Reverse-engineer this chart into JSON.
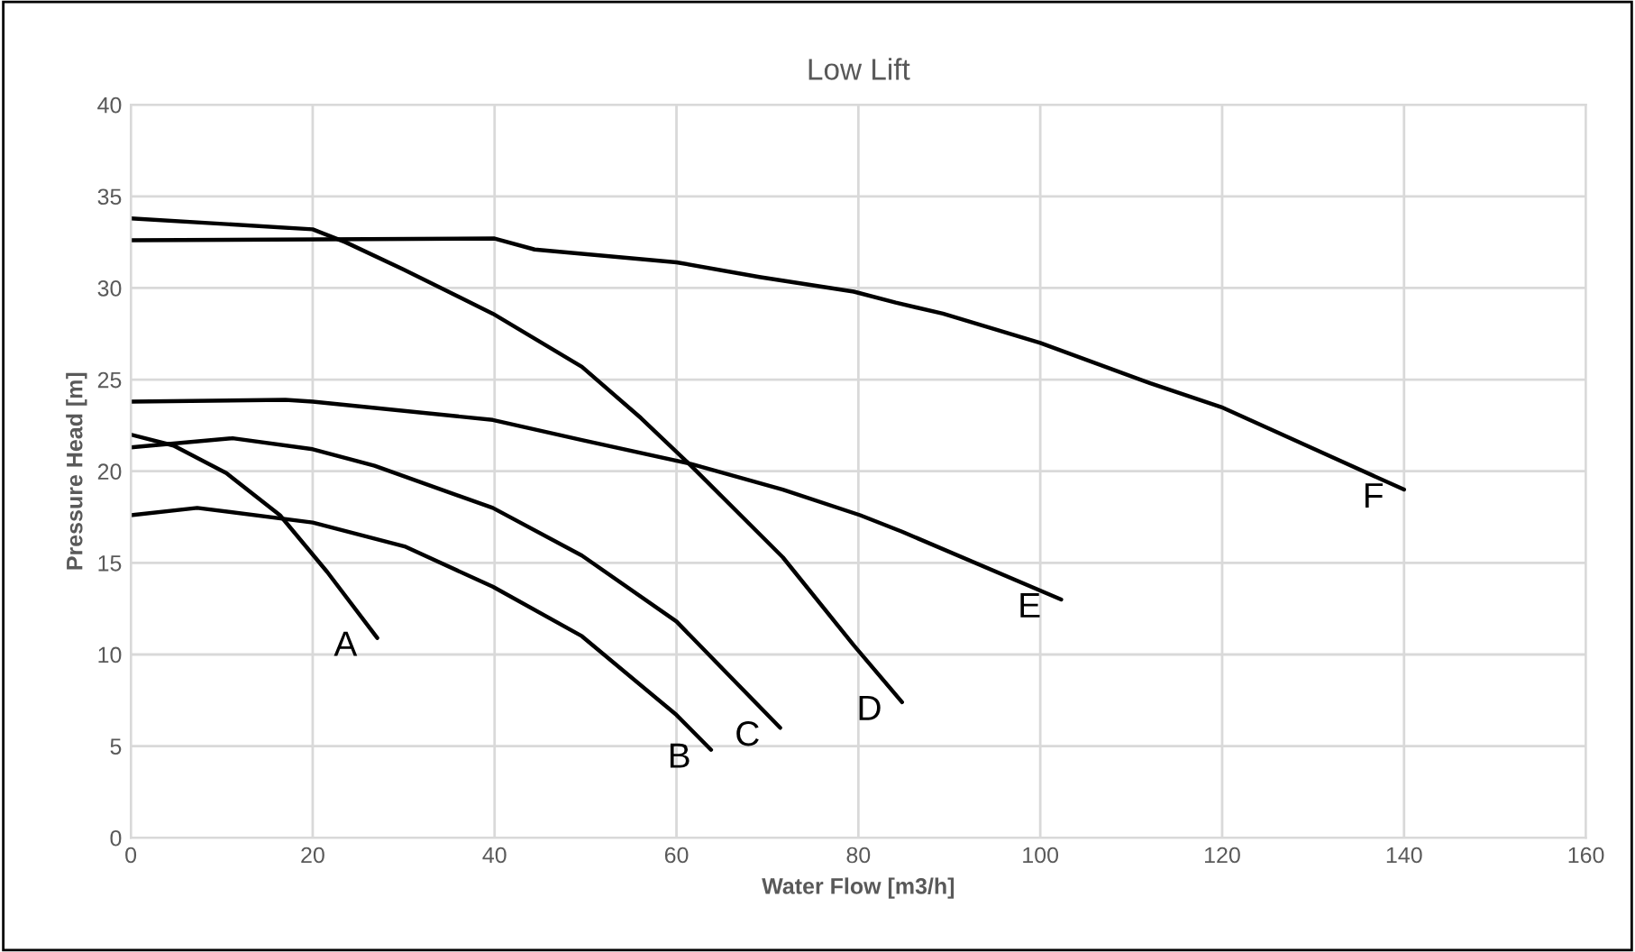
{
  "chart_data": {
    "type": "line",
    "title": "Low Lift",
    "xlabel": "Water Flow [m3/h]",
    "ylabel": "Pressure Head [m]",
    "xlim": [
      0,
      160
    ],
    "xticks": [
      0,
      20,
      40,
      60,
      80,
      100,
      120,
      140,
      160
    ],
    "ylim": [
      0,
      40
    ],
    "yticks": [
      0,
      5,
      10,
      15,
      20,
      25,
      30,
      35,
      40
    ],
    "grid": true,
    "legend": false,
    "marker": "none",
    "line_style": "solid",
    "series": [
      {
        "name": "A",
        "color": "#000000",
        "x": [
          0,
          4.7,
          10.5,
          16.4,
          21.6,
          27.1
        ],
        "values": [
          22.0,
          21.4,
          19.9,
          17.6,
          14.5,
          10.9
        ]
      },
      {
        "name": "B",
        "color": "#000000",
        "x": [
          0,
          7.3,
          20,
          30.1,
          39.8,
          49.6,
          60,
          63.8
        ],
        "values": [
          17.6,
          18.0,
          17.2,
          15.9,
          13.7,
          11.0,
          6.7,
          4.8
        ]
      },
      {
        "name": "C",
        "color": "#000000",
        "x": [
          0,
          11.2,
          20,
          26.8,
          39.8,
          49.6,
          60,
          71.4
        ],
        "values": [
          21.3,
          21.8,
          21.2,
          20.3,
          18.0,
          15.4,
          11.8,
          6.0
        ]
      },
      {
        "name": "D",
        "color": "#000000",
        "x": [
          0,
          20,
          23.6,
          30,
          39.8,
          49.6,
          56.1,
          61.6,
          71.7,
          79.5,
          84.8
        ],
        "values": [
          33.8,
          33.2,
          32.5,
          31.0,
          28.6,
          25.7,
          22.9,
          20.3,
          15.3,
          10.5,
          7.4
        ]
      },
      {
        "name": "E",
        "color": "#000000",
        "x": [
          0,
          17,
          20,
          39.8,
          49.6,
          61.6,
          71.7,
          80.2,
          84.8,
          102.3
        ],
        "values": [
          23.8,
          23.9,
          23.8,
          22.8,
          21.7,
          20.4,
          19.0,
          17.6,
          16.7,
          13.0
        ]
      },
      {
        "name": "F",
        "color": "#000000",
        "x": [
          0,
          40,
          44.4,
          60,
          69.1,
          79.5,
          84.1,
          89.3,
          100,
          112.1,
          119.9,
          140
        ],
        "values": [
          32.6,
          32.7,
          32.1,
          31.4,
          30.6,
          29.8,
          29.2,
          28.6,
          27.0,
          24.8,
          23.5,
          19.0
        ]
      }
    ]
  }
}
